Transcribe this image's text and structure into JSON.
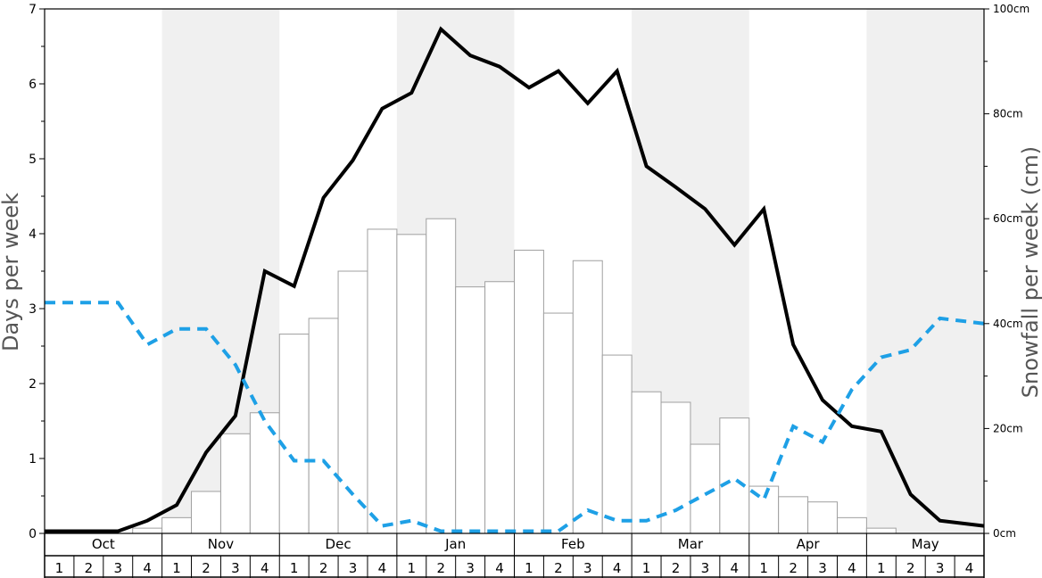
{
  "chart_data": {
    "type": "bar",
    "title": "",
    "ylabel_left": "Days per week",
    "ylabel_right": "Snowfall per week (cm)",
    "ylim_left": [
      0,
      7
    ],
    "ylim_right": [
      0,
      100
    ],
    "left_ticks": [
      "0",
      "1",
      "2",
      "3",
      "4",
      "5",
      "6",
      "7"
    ],
    "right_ticks": [
      "0cm",
      "20cm",
      "40cm",
      "60cm",
      "80cm",
      "100cm"
    ],
    "right_tick_values": [
      0,
      20,
      40,
      60,
      80,
      100
    ],
    "months": [
      "Oct",
      "Nov",
      "Dec",
      "Jan",
      "Feb",
      "Mar",
      "Apr",
      "May"
    ],
    "week_labels": [
      "1",
      "2",
      "3",
      "4",
      "1",
      "2",
      "3",
      "4",
      "1",
      "2",
      "3",
      "4",
      "1",
      "2",
      "3",
      "4",
      "1",
      "2",
      "3",
      "4",
      "1",
      "2",
      "3",
      "4",
      "1",
      "2",
      "3",
      "4",
      "1",
      "2",
      "3",
      "4"
    ],
    "shaded_months": [
      "Nov",
      "Jan",
      "Mar",
      "May"
    ],
    "series": [
      {
        "kind": "bar",
        "axis": "right",
        "values": [
          0,
          0,
          0,
          1,
          3,
          8,
          19,
          23,
          38,
          41,
          50,
          58,
          57,
          60,
          47,
          48,
          54,
          42,
          52,
          34,
          27,
          25,
          17,
          22,
          9,
          7,
          6,
          3,
          1,
          0,
          0,
          0
        ]
      },
      {
        "kind": "line",
        "axis": "left",
        "style": "solid",
        "color": "#000000",
        "values": [
          0.03,
          0.03,
          0.03,
          0.17,
          0.38,
          1.08,
          1.57,
          3.5,
          3.3,
          4.48,
          4.98,
          5.67,
          5.88,
          6.73,
          6.38,
          6.23,
          5.95,
          6.17,
          5.74,
          6.17,
          4.9,
          4.62,
          4.33,
          3.85,
          4.33,
          2.52,
          1.78,
          1.43,
          1.36,
          0.52,
          0.17,
          0.1
        ]
      },
      {
        "kind": "line",
        "axis": "left",
        "style": "dashed",
        "color": "#1ea0e6",
        "values": [
          3.08,
          3.08,
          3.08,
          2.52,
          2.73,
          2.73,
          2.25,
          1.5,
          0.97,
          0.97,
          0.52,
          0.1,
          0.17,
          0.03,
          0.03,
          0.03,
          0.03,
          0.03,
          0.31,
          0.17,
          0.17,
          0.31,
          0.52,
          0.73,
          0.45,
          1.43,
          1.22,
          1.92,
          2.35,
          2.45,
          2.87,
          2.8
        ]
      }
    ],
    "colors": {
      "shade": "#f0f0f0",
      "bar_fill": "#ffffff",
      "bar_stroke": "#a0a0a0",
      "solid_line": "#000000",
      "dashed_line": "#1ea0e6",
      "axis_title": "#555555"
    }
  }
}
